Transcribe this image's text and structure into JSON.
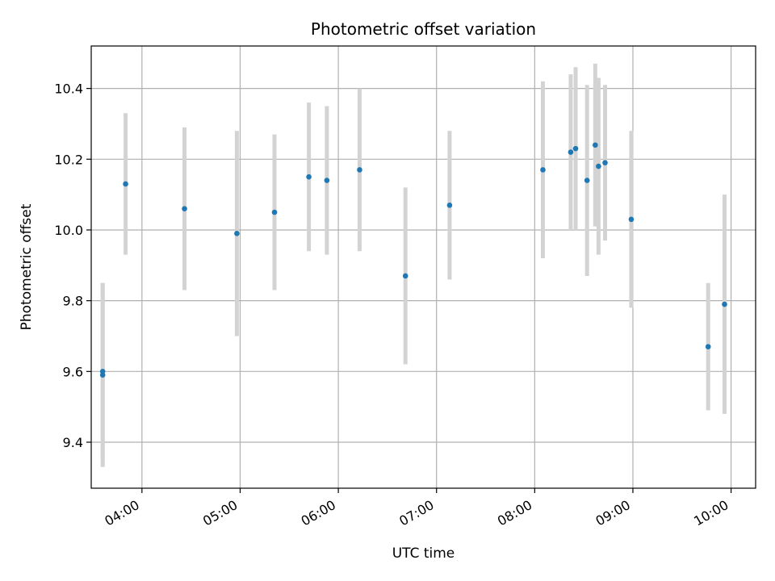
{
  "chart_data": {
    "type": "scatter",
    "title": "Photometric offset variation",
    "xlabel": "UTC time",
    "ylabel": "Photometric offset",
    "x_tick_labels": [
      "04:00",
      "05:00",
      "06:00",
      "07:00",
      "08:00",
      "09:00",
      "10:00"
    ],
    "x_ticks": [
      "04:00",
      "05:00",
      "06:00",
      "07:00",
      "08:00",
      "09:00",
      "10:00"
    ],
    "y_ticks": [
      9.4,
      9.6,
      9.8,
      10.0,
      10.2,
      10.4
    ],
    "y_tick_labels": [
      "9.4",
      "9.6",
      "9.8",
      "10.0",
      "10.2",
      "10.4"
    ],
    "xlim": [
      "03:29",
      "10:15"
    ],
    "ylim": [
      9.27,
      10.52
    ],
    "grid": true,
    "colors": {
      "point": "#1f77b4",
      "errorbar": "#d3d3d3",
      "grid": "#b0b0b0"
    },
    "points": [
      {
        "x": "03:36",
        "y": 9.59,
        "yerr": 0.26
      },
      {
        "x": "03:36",
        "y": 9.6,
        "yerr": 0.25
      },
      {
        "x": "03:50",
        "y": 10.13,
        "yerr": 0.2
      },
      {
        "x": "04:26",
        "y": 10.06,
        "yerr": 0.23
      },
      {
        "x": "04:58",
        "y": 9.99,
        "yerr": 0.29
      },
      {
        "x": "05:21",
        "y": 10.05,
        "yerr": 0.22
      },
      {
        "x": "05:42",
        "y": 10.15,
        "yerr": 0.21
      },
      {
        "x": "05:53",
        "y": 10.14,
        "yerr": 0.21
      },
      {
        "x": "06:13",
        "y": 10.17,
        "yerr": 0.23
      },
      {
        "x": "06:41",
        "y": 9.87,
        "yerr": 0.25
      },
      {
        "x": "07:08",
        "y": 10.07,
        "yerr": 0.21
      },
      {
        "x": "08:05",
        "y": 10.17,
        "yerr": 0.25
      },
      {
        "x": "08:22",
        "y": 10.22,
        "yerr": 0.22
      },
      {
        "x": "08:25",
        "y": 10.23,
        "yerr": 0.23
      },
      {
        "x": "08:32",
        "y": 10.14,
        "yerr": 0.27
      },
      {
        "x": "08:37",
        "y": 10.24,
        "yerr": 0.23
      },
      {
        "x": "08:39",
        "y": 10.18,
        "yerr": 0.25
      },
      {
        "x": "08:43",
        "y": 10.19,
        "yerr": 0.22
      },
      {
        "x": "08:59",
        "y": 10.03,
        "yerr": 0.25
      },
      {
        "x": "09:46",
        "y": 9.67,
        "yerr": 0.18
      },
      {
        "x": "09:56",
        "y": 9.79,
        "yerr": 0.31
      }
    ]
  }
}
